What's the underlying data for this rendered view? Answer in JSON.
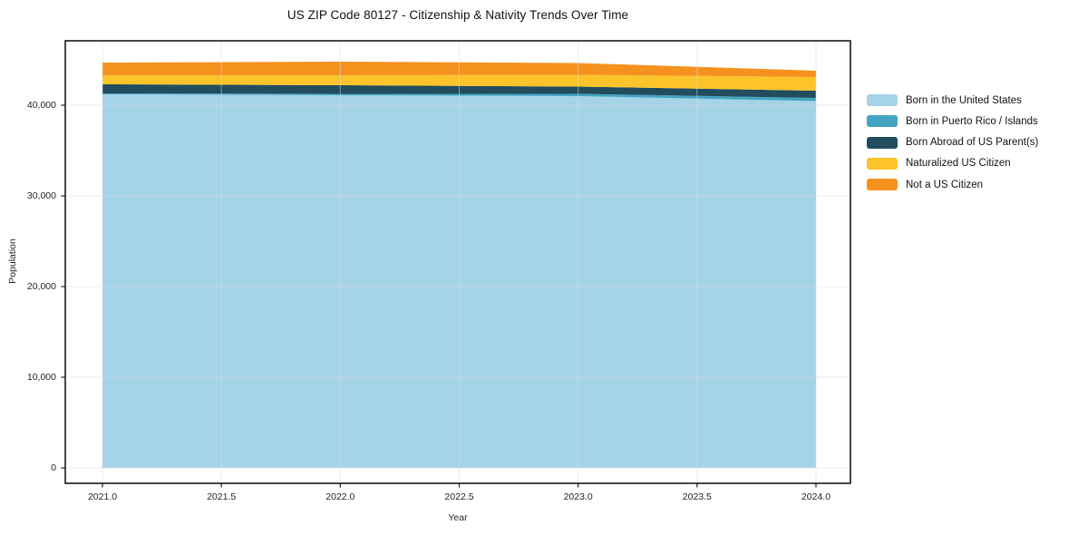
{
  "figure": {
    "background": "#ffffff",
    "border_color": "#1a1a1a",
    "grid_color": "#dadada"
  },
  "chart_data": {
    "type": "area",
    "stacked": true,
    "title": "US ZIP Code 80127 - Citizenship & Nativity Trends Over Time",
    "xlabel": "Year",
    "ylabel": "Population",
    "x": [
      2021,
      2022,
      2023,
      2024
    ],
    "series": [
      {
        "name": "Born in the United States",
        "color": "#a5d3e8",
        "values": [
          41200,
          41100,
          41000,
          40450
        ]
      },
      {
        "name": "Born in Puerto Rico / Islands",
        "color": "#44a4c2",
        "values": [
          100,
          150,
          250,
          350
        ]
      },
      {
        "name": "Born Abroad of US Parent(s)",
        "color": "#214d5e",
        "values": [
          1000,
          950,
          800,
          800
        ]
      },
      {
        "name": "Naturalized US Citizen",
        "color": "#fdc32b",
        "values": [
          1000,
          1100,
          1300,
          1500
        ]
      },
      {
        "name": "Not a US Citizen",
        "color": "#f5921e",
        "values": [
          1400,
          1500,
          1300,
          700
        ]
      }
    ],
    "totals": [
      44700,
      44800,
      44650,
      43800
    ],
    "x_ticks": [
      2021.0,
      2021.5,
      2022.0,
      2022.5,
      2023.0,
      2023.5,
      2024.0
    ],
    "x_tick_labels": [
      "2021.0",
      "2021.5",
      "2022.0",
      "2022.5",
      "2023.0",
      "2023.5",
      "2024.0"
    ],
    "y_ticks": [
      0,
      10000,
      20000,
      30000,
      40000
    ],
    "y_tick_labels": [
      "0",
      "10,000",
      "20,000",
      "30,000",
      "40,000"
    ],
    "xlim": [
      2020.84,
      2024.14
    ],
    "ylim": [
      0,
      47100
    ],
    "grid": true,
    "legend_position": "right"
  }
}
